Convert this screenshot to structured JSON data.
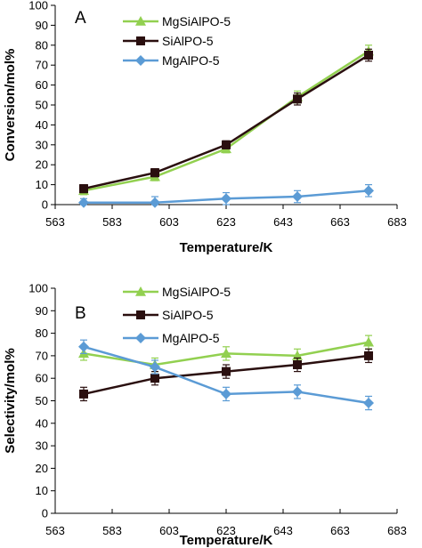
{
  "chart_data": [
    {
      "type": "line",
      "panel_label": "A",
      "xlabel": "Temperature/K",
      "ylabel": "Conversion/mol%",
      "xlim": [
        563,
        683
      ],
      "ylim": [
        0,
        100
      ],
      "xticks": [
        563,
        583,
        603,
        623,
        643,
        663,
        683
      ],
      "yticks": [
        0,
        10,
        20,
        30,
        40,
        50,
        60,
        70,
        80,
        90,
        100
      ],
      "grid": false,
      "legend_position": "top-center",
      "series": [
        {
          "name": "MgSiAlPO-5",
          "color": "#92d050",
          "marker": "triangle",
          "x": [
            573,
            598,
            623,
            648,
            673
          ],
          "y": [
            7,
            14,
            28,
            54,
            77
          ],
          "err": [
            2,
            2,
            2,
            3,
            3
          ]
        },
        {
          "name": "SiAlPO-5",
          "color": "#2a0f0f",
          "marker": "square",
          "x": [
            573,
            598,
            623,
            648,
            673
          ],
          "y": [
            8,
            16,
            30,
            53,
            75
          ],
          "err": [
            2,
            2,
            2,
            3,
            3
          ]
        },
        {
          "name": "MgAlPO-5",
          "color": "#5b9bd5",
          "marker": "diamond",
          "x": [
            573,
            598,
            623,
            648,
            673
          ],
          "y": [
            1,
            1,
            3,
            4,
            7
          ],
          "err": [
            2,
            3,
            3,
            3,
            3
          ]
        }
      ]
    },
    {
      "type": "line",
      "panel_label": "B",
      "xlabel": "Temperature/K",
      "ylabel": "Selectivity/mol%",
      "xlim": [
        563,
        683
      ],
      "ylim": [
        0,
        100
      ],
      "xticks": [
        563,
        583,
        603,
        623,
        643,
        663,
        683
      ],
      "yticks": [
        0,
        10,
        20,
        30,
        40,
        50,
        60,
        70,
        80,
        90,
        100
      ],
      "grid": false,
      "legend_position": "top-center",
      "series": [
        {
          "name": "MgSiAlPO-5",
          "color": "#92d050",
          "marker": "triangle",
          "x": [
            573,
            598,
            623,
            648,
            673
          ],
          "y": [
            71,
            66,
            71,
            70,
            76
          ],
          "err": [
            3,
            3,
            3,
            3,
            3
          ]
        },
        {
          "name": "SiAlPO-5",
          "color": "#2a0f0f",
          "marker": "square",
          "x": [
            573,
            598,
            623,
            648,
            673
          ],
          "y": [
            53,
            60,
            63,
            66,
            70
          ],
          "err": [
            3,
            3,
            3,
            3,
            3
          ]
        },
        {
          "name": "MgAlPO-5",
          "color": "#5b9bd5",
          "marker": "diamond",
          "x": [
            573,
            598,
            623,
            648,
            673
          ],
          "y": [
            74,
            65,
            53,
            54,
            49
          ],
          "err": [
            3,
            3,
            3,
            3,
            3
          ]
        }
      ]
    }
  ]
}
